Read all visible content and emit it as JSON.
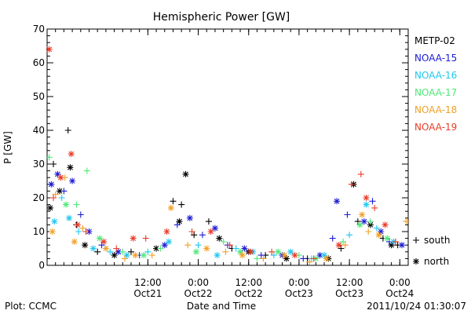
{
  "chart_data": {
    "type": "scatter",
    "title": "Hemispheric Power [GW]",
    "xlabel": "Date and Time",
    "ylabel": "P [GW]",
    "ylim": [
      0,
      70
    ],
    "yticks": [
      0,
      10,
      20,
      30,
      40,
      50,
      60,
      70
    ],
    "xlim": [
      "2011-10-20 12:00",
      "2011-10-24 02:00"
    ],
    "xticks": [
      {
        "time": "2011-10-21 12:00",
        "line1": "12:00",
        "line2": "Oct21"
      },
      {
        "time": "2011-10-22 00:00",
        "line1": "0:00",
        "line2": "Oct22"
      },
      {
        "time": "2011-10-22 12:00",
        "line1": "12:00",
        "line2": "Oct22"
      },
      {
        "time": "2011-10-23 00:00",
        "line1": "0:00",
        "line2": "Oct23"
      },
      {
        "time": "2011-10-23 12:00",
        "line1": "12:00",
        "line2": "Oct23"
      },
      {
        "time": "2011-10-24 00:00",
        "line1": "0:00",
        "line2": "Oct24"
      }
    ],
    "grid": false,
    "legend_position": "right",
    "marker_legend": [
      {
        "symbol": "+",
        "label": "south"
      },
      {
        "symbol": "*",
        "label": "north"
      }
    ],
    "series": [
      {
        "name": "METP-02",
        "color": "#000000",
        "points": [
          [
            "2011-10-20 12:45",
            17,
            "*"
          ],
          [
            "2011-10-20 13:30",
            30,
            "+"
          ],
          [
            "2011-10-20 15:00",
            22,
            "*"
          ],
          [
            "2011-10-20 17:00",
            40,
            "+"
          ],
          [
            "2011-10-20 17:30",
            29,
            "*"
          ],
          [
            "2011-10-20 19:00",
            12,
            "+"
          ],
          [
            "2011-10-20 21:00",
            6,
            "*"
          ],
          [
            "2011-10-21 00:00",
            4,
            "+"
          ],
          [
            "2011-10-21 04:00",
            3,
            "*"
          ],
          [
            "2011-10-21 08:00",
            4,
            "+"
          ],
          [
            "2011-10-21 14:00",
            5,
            "*"
          ],
          [
            "2011-10-21 18:00",
            19,
            "+"
          ],
          [
            "2011-10-21 19:30",
            13,
            "*"
          ],
          [
            "2011-10-21 20:00",
            18,
            "+"
          ],
          [
            "2011-10-21 21:00",
            27,
            "*"
          ],
          [
            "2011-10-21 23:00",
            9,
            "+"
          ],
          [
            "2011-10-22 02:30",
            13,
            "+"
          ],
          [
            "2011-10-22 05:00",
            8,
            "*"
          ],
          [
            "2011-10-22 08:00",
            5,
            "+"
          ],
          [
            "2011-10-22 12:00",
            4,
            "*"
          ],
          [
            "2011-10-22 16:00",
            3,
            "+"
          ],
          [
            "2011-10-22 21:00",
            2,
            "*"
          ],
          [
            "2011-10-23 02:00",
            2,
            "+"
          ],
          [
            "2011-10-23 07:00",
            2,
            "*"
          ],
          [
            "2011-10-23 10:00",
            5,
            "+"
          ],
          [
            "2011-10-23 13:00",
            24,
            "*"
          ],
          [
            "2011-10-23 14:00",
            13,
            "+"
          ],
          [
            "2011-10-23 17:00",
            12,
            "*"
          ],
          [
            "2011-10-23 20:00",
            8,
            "+"
          ],
          [
            "2011-10-23 22:00",
            6,
            "*"
          ],
          [
            "2011-10-23 23:30",
            6,
            "+"
          ]
        ]
      },
      {
        "name": "NOAA-15",
        "color": "#1c1cd6",
        "points": [
          [
            "2011-10-20 13:00",
            24,
            "*"
          ],
          [
            "2011-10-20 14:30",
            27,
            "*"
          ],
          [
            "2011-10-20 16:00",
            22,
            "+"
          ],
          [
            "2011-10-20 18:00",
            25,
            "*"
          ],
          [
            "2011-10-20 20:00",
            15,
            "+"
          ],
          [
            "2011-10-20 22:00",
            10,
            "*"
          ],
          [
            "2011-10-21 01:00",
            6,
            "+"
          ],
          [
            "2011-10-21 05:00",
            4,
            "*"
          ],
          [
            "2011-10-21 10:00",
            3,
            "+"
          ],
          [
            "2011-10-21 16:00",
            6,
            "*"
          ],
          [
            "2011-10-21 19:00",
            12,
            "+"
          ],
          [
            "2011-10-21 22:00",
            14,
            "*"
          ],
          [
            "2011-10-22 01:00",
            9,
            "+"
          ],
          [
            "2011-10-22 04:00",
            11,
            "*"
          ],
          [
            "2011-10-22 07:00",
            6,
            "+"
          ],
          [
            "2011-10-22 11:00",
            5,
            "*"
          ],
          [
            "2011-10-22 15:00",
            3,
            "+"
          ],
          [
            "2011-10-22 20:00",
            3,
            "*"
          ],
          [
            "2011-10-23 01:00",
            2,
            "+"
          ],
          [
            "2011-10-23 05:00",
            3,
            "*"
          ],
          [
            "2011-10-23 08:00",
            8,
            "+"
          ],
          [
            "2011-10-23 09:00",
            19,
            "*"
          ],
          [
            "2011-10-23 11:30",
            15,
            "+"
          ],
          [
            "2011-10-23 15:30",
            13,
            "*"
          ],
          [
            "2011-10-23 17:30",
            19,
            "+"
          ],
          [
            "2011-10-23 19:30",
            10,
            "*"
          ],
          [
            "2011-10-23 21:30",
            7,
            "+"
          ],
          [
            "2011-10-24 00:30",
            6,
            "*"
          ]
        ]
      },
      {
        "name": "NOAA-16",
        "color": "#1ec8f0",
        "points": [
          [
            "2011-10-20 13:45",
            13,
            "*"
          ],
          [
            "2011-10-20 15:30",
            20,
            "+"
          ],
          [
            "2011-10-20 17:15",
            14,
            "*"
          ],
          [
            "2011-10-20 19:30",
            10,
            "+"
          ],
          [
            "2011-10-20 23:00",
            5,
            "*"
          ],
          [
            "2011-10-21 03:00",
            4,
            "+"
          ],
          [
            "2011-10-21 07:00",
            3,
            "*"
          ],
          [
            "2011-10-21 12:00",
            4,
            "+"
          ],
          [
            "2011-10-21 17:00",
            7,
            "*"
          ],
          [
            "2011-10-22 00:00",
            6,
            "+"
          ],
          [
            "2011-10-22 04:30",
            3,
            "*"
          ],
          [
            "2011-10-22 09:00",
            5,
            "+"
          ],
          [
            "2011-10-22 13:00",
            4,
            "*"
          ],
          [
            "2011-10-22 18:00",
            3,
            "+"
          ],
          [
            "2011-10-22 22:00",
            4,
            "*"
          ],
          [
            "2011-10-23 03:00",
            2,
            "+"
          ],
          [
            "2011-10-23 06:00",
            3,
            "*"
          ],
          [
            "2011-10-23 12:00",
            9,
            "+"
          ],
          [
            "2011-10-23 16:00",
            18,
            "*"
          ],
          [
            "2011-10-23 18:30",
            11,
            "+"
          ],
          [
            "2011-10-23 22:30",
            7,
            "*"
          ]
        ]
      },
      {
        "name": "NOAA-17",
        "color": "#50e878",
        "points": [
          [
            "2011-10-20 12:30",
            32,
            "+"
          ],
          [
            "2011-10-20 16:30",
            18,
            "*"
          ],
          [
            "2011-10-20 19:00",
            18,
            "+"
          ],
          [
            "2011-10-20 21:30",
            28,
            "+"
          ],
          [
            "2011-10-21 00:30",
            8,
            "*"
          ],
          [
            "2011-10-21 06:00",
            4,
            "+"
          ],
          [
            "2011-10-21 11:00",
            3,
            "*"
          ],
          [
            "2011-10-21 15:00",
            5,
            "+"
          ],
          [
            "2011-10-21 23:30",
            4,
            "*"
          ],
          [
            "2011-10-22 06:00",
            7,
            "+"
          ],
          [
            "2011-10-22 10:00",
            4,
            "*"
          ],
          [
            "2011-10-22 14:00",
            2,
            "+"
          ],
          [
            "2011-10-22 19:00",
            4,
            "*"
          ],
          [
            "2011-10-23 00:00",
            3,
            "+"
          ],
          [
            "2011-10-23 04:00",
            2,
            "*"
          ],
          [
            "2011-10-23 10:30",
            7,
            "+"
          ],
          [
            "2011-10-23 14:30",
            12,
            "*"
          ],
          [
            "2011-10-23 17:00",
            13,
            "+"
          ],
          [
            "2011-10-23 21:00",
            8,
            "*"
          ]
        ]
      },
      {
        "name": "NOAA-18",
        "color": "#f0a028",
        "points": [
          [
            "2011-10-20 13:15",
            10,
            "*"
          ],
          [
            "2011-10-20 14:00",
            21,
            "+"
          ],
          [
            "2011-10-20 16:15",
            26,
            "+"
          ],
          [
            "2011-10-20 18:30",
            7,
            "*"
          ],
          [
            "2011-10-20 20:30",
            11,
            "+"
          ],
          [
            "2011-10-21 02:00",
            5,
            "*"
          ],
          [
            "2011-10-21 06:30",
            2,
            "+"
          ],
          [
            "2011-10-21 09:00",
            3,
            "*"
          ],
          [
            "2011-10-21 13:00",
            3,
            "+"
          ],
          [
            "2011-10-21 17:30",
            17,
            "*"
          ],
          [
            "2011-10-21 21:30",
            6,
            "+"
          ],
          [
            "2011-10-22 02:00",
            5,
            "*"
          ],
          [
            "2011-10-22 06:30",
            4,
            "+"
          ],
          [
            "2011-10-22 10:30",
            3,
            "*"
          ],
          [
            "2011-10-22 15:30",
            2,
            "+"
          ],
          [
            "2011-10-22 20:30",
            3,
            "*"
          ],
          [
            "2011-10-23 02:30",
            1,
            "+"
          ],
          [
            "2011-10-23 06:30",
            2,
            "*"
          ],
          [
            "2011-10-23 11:00",
            6,
            "+"
          ],
          [
            "2011-10-23 15:00",
            15,
            "*"
          ],
          [
            "2011-10-23 16:30",
            10,
            "+"
          ],
          [
            "2011-10-23 19:00",
            9,
            "*"
          ],
          [
            "2011-10-24 01:30",
            13,
            "+"
          ]
        ]
      },
      {
        "name": "NOAA-19",
        "color": "#e83c28",
        "points": [
          [
            "2011-10-20 12:30",
            64,
            "*"
          ],
          [
            "2011-10-20 13:30",
            20,
            "+"
          ],
          [
            "2011-10-20 15:15",
            26,
            "*"
          ],
          [
            "2011-10-20 17:45",
            33,
            "*"
          ],
          [
            "2011-10-20 19:15",
            12,
            "*"
          ],
          [
            "2011-10-20 21:15",
            10,
            "+"
          ],
          [
            "2011-10-21 01:30",
            7,
            "*"
          ],
          [
            "2011-10-21 04:30",
            5,
            "+"
          ],
          [
            "2011-10-21 08:30",
            8,
            "*"
          ],
          [
            "2011-10-21 11:30",
            8,
            "+"
          ],
          [
            "2011-10-21 16:30",
            10,
            "*"
          ],
          [
            "2011-10-21 22:30",
            10,
            "+"
          ],
          [
            "2011-10-22 03:00",
            10,
            "*"
          ],
          [
            "2011-10-22 07:30",
            6,
            "+"
          ],
          [
            "2011-10-22 12:30",
            4,
            "*"
          ],
          [
            "2011-10-22 17:30",
            4,
            "+"
          ],
          [
            "2011-10-22 23:00",
            3,
            "*"
          ],
          [
            "2011-10-23 03:30",
            2,
            "+"
          ],
          [
            "2011-10-23 09:30",
            6,
            "*"
          ],
          [
            "2011-10-23 12:30",
            24,
            "+"
          ],
          [
            "2011-10-23 14:45",
            27,
            "+"
          ],
          [
            "2011-10-23 16:00",
            20,
            "*"
          ],
          [
            "2011-10-23 18:00",
            17,
            "+"
          ],
          [
            "2011-10-23 20:30",
            12,
            "*"
          ],
          [
            "2011-10-23 23:00",
            7,
            "+"
          ]
        ]
      }
    ]
  },
  "footer": {
    "left": "Plot: CCMC",
    "center": "Date and Time",
    "right": "2011/10/24 01:30:07"
  }
}
